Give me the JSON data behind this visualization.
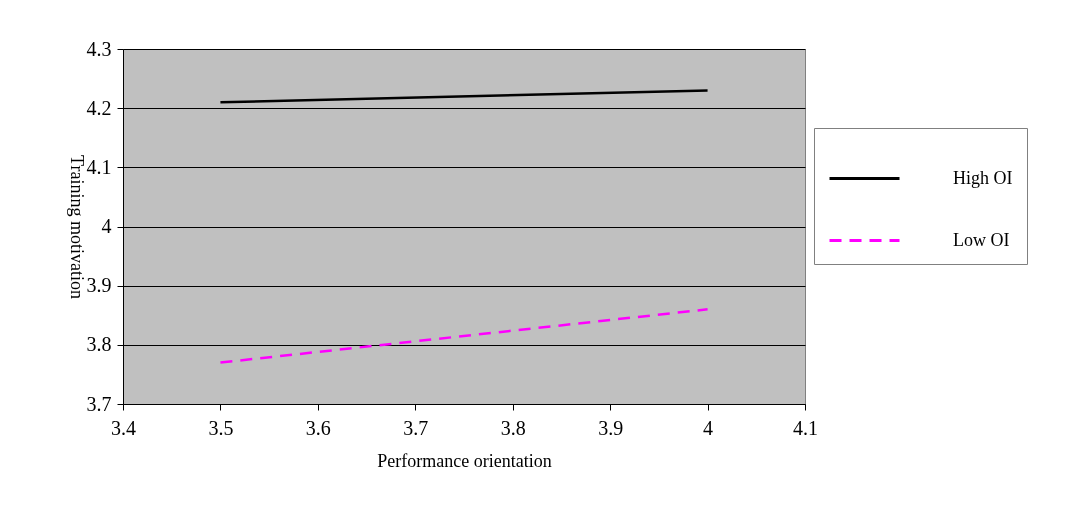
{
  "chart_data": {
    "type": "line",
    "xlabel": "Performance orientation",
    "ylabel": "Training motivation",
    "xlim": [
      3.4,
      4.1
    ],
    "xticks": [
      3.4,
      3.5,
      3.6,
      3.7,
      3.8,
      3.9,
      4,
      4.1
    ],
    "ylim": [
      3.7,
      4.3
    ],
    "yticks": [
      3.7,
      3.8,
      3.9,
      4,
      4.1,
      4.2,
      4.3
    ],
    "grid": "y",
    "legend": "right",
    "marker": "none",
    "x": [
      3.5,
      4
    ],
    "series": [
      {
        "name": "High OI",
        "color": "#000000",
        "line_style": "solid",
        "values": [
          4.21,
          4.23
        ]
      },
      {
        "name": "Low OI",
        "color": "#ff00ff",
        "line_style": "dashed",
        "values": [
          3.77,
          3.86
        ]
      }
    ]
  }
}
